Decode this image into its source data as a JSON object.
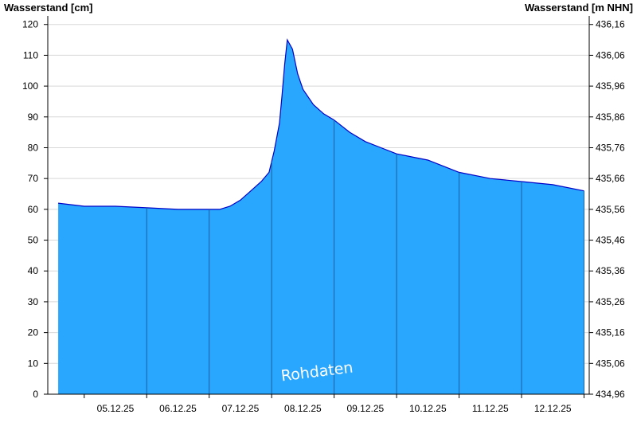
{
  "chart_data": {
    "type": "area",
    "y_left_label": "Wasserstand [cm]",
    "y_right_label": "Wasserstand [m NHN]",
    "ylim": [
      0,
      122
    ],
    "y_left_ticks": [
      0,
      10,
      20,
      30,
      40,
      50,
      60,
      70,
      80,
      90,
      100,
      110,
      120
    ],
    "y_right_ticks": [
      "434,96",
      "435,06",
      "435,16",
      "435,26",
      "435,36",
      "435,46",
      "435,56",
      "435,66",
      "435,76",
      "435,86",
      "435,96",
      "436,06",
      "436,16"
    ],
    "x_range_days": [
      "04.12.25",
      "13.12.25"
    ],
    "x_ticks": [
      "05.12.25",
      "06.12.25",
      "07.12.25",
      "08.12.25",
      "09.12.25",
      "10.12.25",
      "11.12.25",
      "12.12.25"
    ],
    "grid": "horizontal",
    "watermark": "Rohdaten",
    "colors": {
      "fill": "#29a7ff",
      "line": "#0000c8",
      "grid": "#d8d8d8",
      "day_separator": "#1b5fa0"
    },
    "series": [
      {
        "x": [
          "04.12.25 14:00",
          "05.12.25 00:00",
          "05.12.25 12:00",
          "06.12.25 00:00",
          "06.12.25 12:00",
          "07.12.25 00:00",
          "07.12.25 04:00",
          "07.12.25 08:00",
          "07.12.25 12:00",
          "07.12.25 16:00",
          "07.12.25 20:00",
          "07.12.25 23:00",
          "08.12.25 01:00",
          "08.12.25 03:00",
          "08.12.25 04:00",
          "08.12.25 05:00",
          "08.12.25 06:00",
          "08.12.25 08:00",
          "08.12.25 10:00",
          "08.12.25 12:00",
          "08.12.25 16:00",
          "08.12.25 20:00",
          "09.12.25 00:00",
          "09.12.25 06:00",
          "09.12.25 12:00",
          "09.12.25 18:00",
          "10.12.25 00:00",
          "10.12.25 06:00",
          "10.12.25 12:00",
          "10.12.25 18:00",
          "11.12.25 00:00",
          "11.12.25 12:00",
          "12.12.25 00:00",
          "12.12.25 12:00",
          "13.12.25 00:00"
        ],
        "values": [
          62,
          61,
          61,
          60.5,
          60,
          60,
          60,
          61,
          63,
          66,
          69,
          72,
          79,
          88,
          97,
          107,
          115,
          112,
          104,
          99,
          94,
          91,
          89,
          85,
          82,
          80,
          78,
          77,
          76,
          74,
          72,
          70,
          69,
          68,
          66
        ]
      }
    ]
  }
}
